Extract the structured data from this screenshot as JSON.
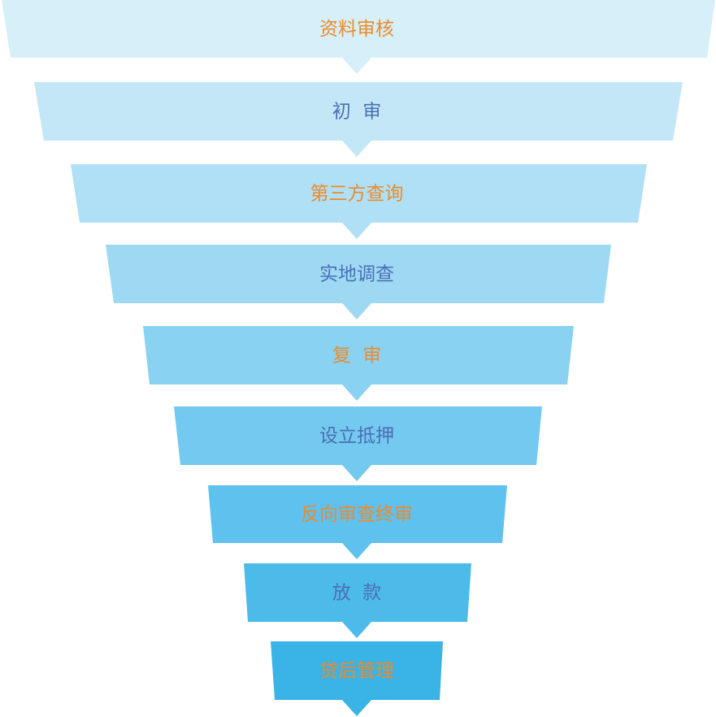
{
  "stages": [
    {
      "label": "资料审核",
      "text_color": "#ee8a2a",
      "fill_color": "#d6eff8"
    },
    {
      "label": "初  审",
      "text_color": "#4a6fb5",
      "fill_color": "#c3e7f7"
    },
    {
      "label": "第三方查询",
      "text_color": "#ee8a2a",
      "fill_color": "#b0e0f5"
    },
    {
      "label": "实地调查",
      "text_color": "#4a6fb5",
      "fill_color": "#9ed9f3"
    },
    {
      "label": "复  审",
      "text_color": "#ee8a2a",
      "fill_color": "#89d2f1"
    },
    {
      "label": "设立抵押",
      "text_color": "#4a6fb5",
      "fill_color": "#73c9ef"
    },
    {
      "label": "反向审查终审",
      "text_color": "#ee8a2a",
      "fill_color": "#5fc1ed"
    },
    {
      "label": "放  款",
      "text_color": "#4a6fb5",
      "fill_color": "#4dbbea"
    },
    {
      "label": "贷后管理",
      "text_color": "#ee8a2a",
      "fill_color": "#3ab3e6"
    }
  ]
}
